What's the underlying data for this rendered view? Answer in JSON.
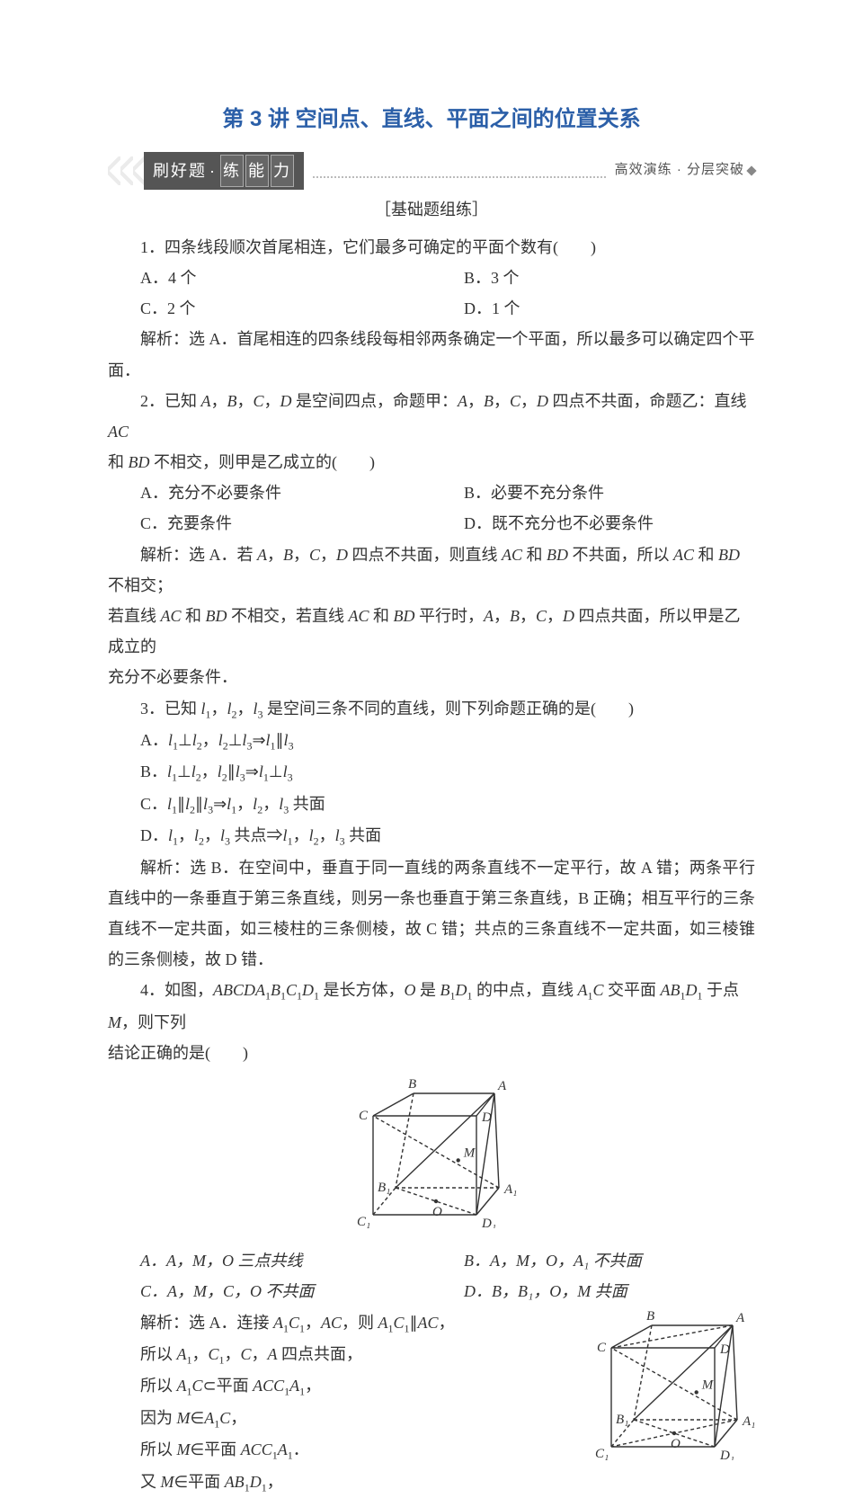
{
  "title": "第 3 讲  空间点、直线、平面之间的位置关系",
  "banner": {
    "left": "刷好题",
    "right_boxes": [
      "练",
      "能",
      "力"
    ],
    "right_label": "高效演练 · 分层突破"
  },
  "section_head": "［基础题组练］",
  "q1": {
    "stem": "1．四条线段顺次首尾相连，它们最多可确定的平面个数有(　　)",
    "A": "A．4 个",
    "B": "B．3 个",
    "C": "C．2 个",
    "D": "D．1 个",
    "ans": "解析：选 A．首尾相连的四条线段每相邻两条确定一个平面，所以最多可以确定四个平面．"
  },
  "q2": {
    "stem_a": "2．已知 ",
    "stem_b": "A",
    "stem_c": "，",
    "stem_d": "B",
    "stem_e": "，",
    "stem_f": "C",
    "stem_g": "，",
    "stem_h": "D",
    "stem_i": " 是空间四点，命题甲：",
    "stem_j": "A",
    "stem_k": "，",
    "stem_l": "B",
    "stem_m": "，",
    "stem_n": "C",
    "stem_o": "，",
    "stem_p": "D",
    "stem_q": " 四点不共面，命题乙：直线 ",
    "stem_r": "AC",
    "line2_a": "和 ",
    "line2_b": "BD",
    "line2_c": " 不相交，则甲是乙成立的(　　)",
    "A": "A．充分不必要条件",
    "B": "B．必要不充分条件",
    "C": "C．充要条件",
    "D": "D．既不充分也不必要条件",
    "ans1_a": "解析：选 A．若 ",
    "ans1_b": "A",
    "ans1_c": "，",
    "ans1_d": "B",
    "ans1_e": "，",
    "ans1_f": "C",
    "ans1_g": "，",
    "ans1_h": "D",
    "ans1_i": " 四点不共面，则直线 ",
    "ans1_j": "AC",
    "ans1_k": " 和 ",
    "ans1_l": "BD",
    "ans1_m": " 不共面，所以 ",
    "ans1_n": "AC",
    "ans1_o": " 和 ",
    "ans1_p": "BD",
    "ans1_q": " 不相交；",
    "ans2_a": "若直线 ",
    "ans2_b": "AC",
    "ans2_c": " 和 ",
    "ans2_d": "BD",
    "ans2_e": " 不相交，若直线 ",
    "ans2_f": "AC",
    "ans2_g": " 和 ",
    "ans2_h": "BD",
    "ans2_i": " 平行时，",
    "ans2_j": "A",
    "ans2_k": "，",
    "ans2_l": "B",
    "ans2_m": "，",
    "ans2_n": "C",
    "ans2_o": "，",
    "ans2_p": "D",
    "ans2_q": " 四点共面，所以甲是乙成立的",
    "ans3": "充分不必要条件．"
  },
  "q3": {
    "stem_a": "3．已知 ",
    "l1": "l",
    "s1": "1",
    "c1": "，",
    "l2": "l",
    "s2": "2",
    "c2": "，",
    "l3": "l",
    "s3": "3",
    "stem_b": " 是空间三条不同的直线，则下列命题正确的是(　　)",
    "A_a": "A．",
    "A_l1": "l",
    "A_s1": "1",
    "A_perp1": "⊥",
    "A_l2": "l",
    "A_s2": "2",
    "A_c1": "，",
    "A_l3": "l",
    "A_s3": "2",
    "A_perp2": "⊥",
    "A_l4": "l",
    "A_s4": "3",
    "A_imp": "⇒",
    "A_l5": "l",
    "A_s5": "1",
    "A_par": "∥",
    "A_l6": "l",
    "A_s6": "3",
    "B_a": "B．",
    "B_l1": "l",
    "B_s1": "1",
    "B_perp1": "⊥",
    "B_l2": "l",
    "B_s2": "2",
    "B_c1": "，",
    "B_l3": "l",
    "B_s3": "2",
    "B_par1": "∥",
    "B_l4": "l",
    "B_s4": "3",
    "B_imp": "⇒",
    "B_l5": "l",
    "B_s5": "1",
    "B_perp2": "⊥",
    "B_l6": "l",
    "B_s6": "3",
    "C_a": "C．",
    "C_l1": "l",
    "C_s1": "1",
    "C_par1": "∥",
    "C_l2": "l",
    "C_s2": "2",
    "C_par2": "∥",
    "C_l3": "l",
    "C_s3": "3",
    "C_imp": "⇒",
    "C_l4": "l",
    "C_s4": "1",
    "C_c1": "，",
    "C_l5": "l",
    "C_s5": "2",
    "C_c2": "，",
    "C_l6": "l",
    "C_s6": "3",
    "C_tail": " 共面",
    "D_a": "D．",
    "D_l1": "l",
    "D_s1": "1",
    "D_c1": "，",
    "D_l2": "l",
    "D_s2": "2",
    "D_c2": "，",
    "D_l3": "l",
    "D_s3": "3",
    "D_mid": " 共点⇒",
    "D_l4": "l",
    "D_s4": "1",
    "D_c3": "，",
    "D_l5": "l",
    "D_s5": "2",
    "D_c4": "，",
    "D_l6": "l",
    "D_s6": "3",
    "D_tail": " 共面",
    "ans": "解析：选 B．在空间中，垂直于同一直线的两条直线不一定平行，故 A 错；两条平行直线中的一条垂直于第三条直线，则另一条也垂直于第三条直线，B 正确；相互平行的三条直线不一定共面，如三棱柱的三条侧棱，故 C 错；共点的三条直线不一定共面，如三棱锥的三条侧棱，故 D 错．"
  },
  "q4": {
    "stem_a": "4．如图，",
    "stem_b": "ABCDA",
    "stem_s1": "1",
    "stem_c": "B",
    "stem_s2": "1",
    "stem_d": "C",
    "stem_s3": "1",
    "stem_e": "D",
    "stem_s4": "1",
    "stem_f": " 是长方体，",
    "stem_g": "O",
    "stem_h": " 是 ",
    "stem_i": "B",
    "stem_s5": "1",
    "stem_j": "D",
    "stem_s6": "1",
    "stem_k": " 的中点，直线 ",
    "stem_l": "A",
    "stem_s7": "1",
    "stem_m": "C",
    "stem_n": " 交平面 ",
    "stem_o": "AB",
    "stem_s8": "1",
    "stem_p": "D",
    "stem_s9": "1",
    "stem_q": " 于点 ",
    "stem_r": "M",
    "stem_s": "，则下列",
    "line2": "结论正确的是(　　)",
    "A": "A．A，M，O 三点共线",
    "B": "B．A，M，O，A₁ 不共面",
    "C": "C．A，M，C，O 不共面",
    "D": "D．B，B₁，O，M 共面",
    "sol_l1_a": "解析：选 A．连接 ",
    "sol_l1_b": "A",
    "sol_l1_s1": "1",
    "sol_l1_c": "C",
    "sol_l1_s2": "1",
    "sol_l1_d": "，",
    "sol_l1_e": "AC",
    "sol_l1_f": "，则 ",
    "sol_l1_g": "A",
    "sol_l1_s3": "1",
    "sol_l1_h": "C",
    "sol_l1_s4": "1",
    "sol_l1_i": "∥",
    "sol_l1_j": "AC",
    "sol_l1_k": "，",
    "sol_l2_a": "所以 ",
    "sol_l2_b": "A",
    "sol_l2_s1": "1",
    "sol_l2_c": "，",
    "sol_l2_d": "C",
    "sol_l2_s2": "1",
    "sol_l2_e": "，",
    "sol_l2_f": "C",
    "sol_l2_g": "，",
    "sol_l2_h": "A",
    "sol_l2_i": " 四点共面，",
    "sol_l3_a": "所以 ",
    "sol_l3_b": "A",
    "sol_l3_s1": "1",
    "sol_l3_c": "C",
    "sol_l3_d": "⊂平面 ",
    "sol_l3_e": "ACC",
    "sol_l3_s2": "1",
    "sol_l3_f": "A",
    "sol_l3_s3": "1",
    "sol_l3_g": "，",
    "sol_l4_a": "因为 ",
    "sol_l4_b": "M",
    "sol_l4_c": "∈",
    "sol_l4_d": "A",
    "sol_l4_s1": "1",
    "sol_l4_e": "C",
    "sol_l4_f": "，",
    "sol_l5_a": "所以 ",
    "sol_l5_b": "M",
    "sol_l5_c": "∈平面 ",
    "sol_l5_d": "ACC",
    "sol_l5_s1": "1",
    "sol_l5_e": "A",
    "sol_l5_s2": "1",
    "sol_l5_f": "．",
    "sol_l6_a": "又 ",
    "sol_l6_b": "M",
    "sol_l6_c": "∈平面 ",
    "sol_l6_d": "AB",
    "sol_l6_s1": "1",
    "sol_l6_e": "D",
    "sol_l6_s2": "1",
    "sol_l6_f": "，"
  },
  "figure": {
    "stroke": "#333333",
    "dash": "4,3",
    "labels": {
      "B": "B",
      "A": "A",
      "C": "C",
      "D": "D",
      "B1": "B₁",
      "A1": "A₁",
      "C1": "C₁",
      "D1": "D₁",
      "O": "O",
      "M": "M"
    },
    "label_font": "italic 15px Times New Roman"
  }
}
